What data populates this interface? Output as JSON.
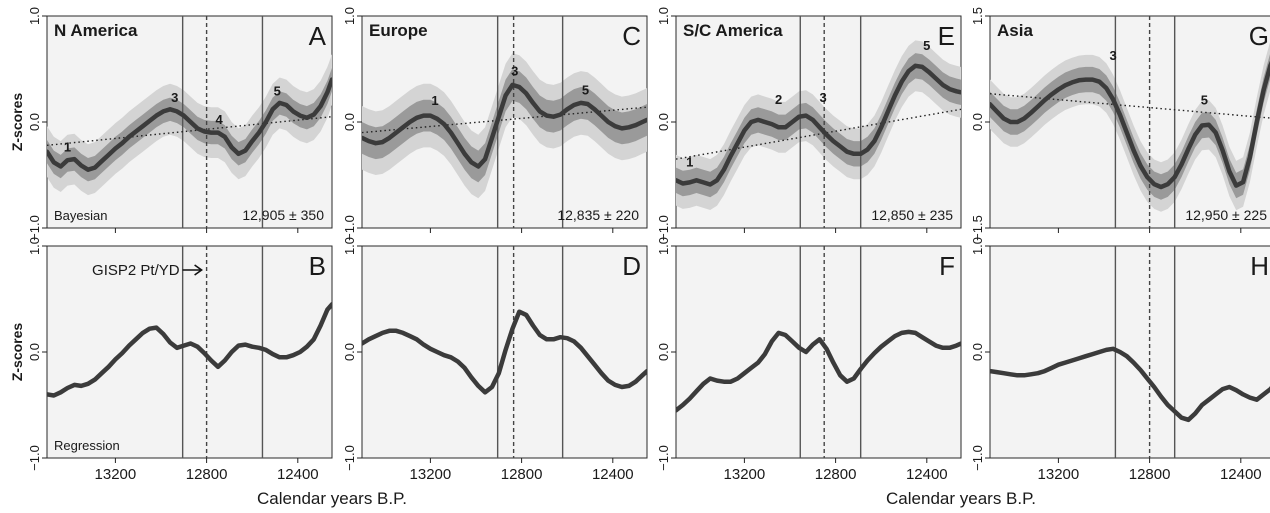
{
  "chart_data": {
    "type": "line",
    "xlabel": "Calendar years B.P.",
    "ylabel": "Z-scores",
    "xlim": [
      13500,
      12250
    ],
    "x_ticks": [
      13200,
      12800,
      12400
    ],
    "x_tick_labels": [
      "13200",
      "12800",
      "12400"
    ],
    "gisp_marker": {
      "label": "GISP2 Pt/YD",
      "x": 12800
    },
    "panels": [
      {
        "region": "N America",
        "letter": "A",
        "method": "Bayesian",
        "age_label": "12,905 ± 350",
        "ylim": [
          -1.0,
          1.0
        ],
        "y_ticks": [
          1.0,
          0.0,
          -1.0
        ],
        "y_tick_labels": [
          "1.0",
          "0.0",
          "−1.0"
        ],
        "vlines": {
          "solid": [
            12905,
            12555
          ],
          "dashed": [
            12800
          ]
        },
        "x": [
          13500,
          13470,
          13440,
          13410,
          13380,
          13350,
          13320,
          13290,
          13260,
          13230,
          13200,
          13170,
          13140,
          13110,
          13080,
          13050,
          13020,
          12990,
          12960,
          12930,
          12900,
          12870,
          12840,
          12810,
          12780,
          12750,
          12720,
          12690,
          12660,
          12630,
          12600,
          12570,
          12540,
          12510,
          12480,
          12450,
          12420,
          12390,
          12360,
          12330,
          12300,
          12270,
          12250
        ],
        "y": [
          -0.28,
          -0.38,
          -0.42,
          -0.36,
          -0.35,
          -0.41,
          -0.45,
          -0.43,
          -0.37,
          -0.31,
          -0.25,
          -0.2,
          -0.14,
          -0.09,
          -0.04,
          0.01,
          0.06,
          0.1,
          0.12,
          0.1,
          0.06,
          0.0,
          -0.06,
          -0.09,
          -0.1,
          -0.1,
          -0.14,
          -0.24,
          -0.3,
          -0.27,
          -0.18,
          -0.1,
          0.0,
          0.12,
          0.18,
          0.16,
          0.1,
          0.06,
          0.04,
          0.07,
          0.15,
          0.28,
          0.4
        ],
        "band_inner": 0.11,
        "band_outer": 0.24,
        "trend": {
          "x": [
            13500,
            12250
          ],
          "y": [
            -0.22,
            0.05
          ]
        },
        "events": [
          {
            "label": "1",
            "x": 13410,
            "y": -0.28
          },
          {
            "label": "3",
            "x": 12940,
            "y": 0.19
          },
          {
            "label": "4",
            "x": 12745,
            "y": -0.02
          },
          {
            "label": "5",
            "x": 12490,
            "y": 0.25
          }
        ]
      },
      {
        "region": "N America",
        "letter": "B",
        "method": "Regression",
        "age_label": "",
        "ylim": [
          -1.0,
          1.0
        ],
        "y_ticks": [
          1.0,
          0.0,
          -1.0
        ],
        "y_tick_labels": [
          "1.0",
          "0.0",
          "−1.0"
        ],
        "vlines": {
          "solid": [
            12905,
            12555
          ],
          "dashed": [
            12800
          ]
        },
        "x": [
          13500,
          13470,
          13440,
          13410,
          13380,
          13350,
          13320,
          13290,
          13260,
          13230,
          13200,
          13170,
          13140,
          13110,
          13080,
          13050,
          13020,
          12990,
          12960,
          12930,
          12900,
          12870,
          12840,
          12810,
          12780,
          12750,
          12720,
          12690,
          12660,
          12630,
          12600,
          12570,
          12540,
          12510,
          12480,
          12450,
          12420,
          12390,
          12360,
          12330,
          12300,
          12270,
          12250
        ],
        "y": [
          -0.4,
          -0.41,
          -0.38,
          -0.34,
          -0.31,
          -0.32,
          -0.3,
          -0.26,
          -0.2,
          -0.14,
          -0.07,
          -0.01,
          0.06,
          0.12,
          0.18,
          0.22,
          0.23,
          0.17,
          0.09,
          0.04,
          0.06,
          0.08,
          0.05,
          -0.01,
          -0.08,
          -0.14,
          -0.08,
          0.0,
          0.06,
          0.07,
          0.05,
          0.04,
          0.02,
          -0.02,
          -0.05,
          -0.05,
          -0.03,
          0.0,
          0.05,
          0.12,
          0.25,
          0.4,
          0.45
        ],
        "events": []
      },
      {
        "region": "Europe",
        "letter": "C",
        "method": "",
        "age_label": "12,835 ± 220",
        "ylim": [
          -1.0,
          1.0
        ],
        "y_ticks": [
          1.0,
          0.0,
          -1.0
        ],
        "y_tick_labels": [
          "1.0",
          "0.0",
          "−1.0"
        ],
        "vlines": {
          "solid": [
            12905,
            12620
          ],
          "dashed": [
            12835
          ]
        },
        "x": [
          13500,
          13470,
          13440,
          13410,
          13380,
          13350,
          13320,
          13290,
          13260,
          13230,
          13200,
          13170,
          13140,
          13110,
          13080,
          13050,
          13020,
          12990,
          12960,
          12930,
          12900,
          12870,
          12840,
          12810,
          12780,
          12750,
          12720,
          12690,
          12660,
          12630,
          12600,
          12570,
          12540,
          12510,
          12480,
          12450,
          12420,
          12390,
          12360,
          12330,
          12300,
          12270,
          12250
        ],
        "y": [
          -0.15,
          -0.18,
          -0.2,
          -0.19,
          -0.15,
          -0.1,
          -0.05,
          0.0,
          0.04,
          0.06,
          0.06,
          0.03,
          -0.02,
          -0.1,
          -0.2,
          -0.3,
          -0.38,
          -0.42,
          -0.35,
          -0.15,
          0.05,
          0.25,
          0.35,
          0.33,
          0.27,
          0.18,
          0.1,
          0.06,
          0.05,
          0.07,
          0.12,
          0.16,
          0.18,
          0.17,
          0.12,
          0.06,
          0.0,
          -0.04,
          -0.06,
          -0.05,
          -0.03,
          0.0,
          0.02
        ],
        "band_inner": 0.15,
        "band_outer": 0.3,
        "trend": {
          "x": [
            13500,
            12250
          ],
          "y": [
            -0.1,
            0.14
          ]
        },
        "events": [
          {
            "label": "1",
            "x": 13180,
            "y": 0.16
          },
          {
            "label": "3",
            "x": 12830,
            "y": 0.44
          },
          {
            "label": "5",
            "x": 12520,
            "y": 0.26
          }
        ]
      },
      {
        "region": "Europe",
        "letter": "D",
        "method": "",
        "age_label": "",
        "ylim": [
          -1.0,
          1.0
        ],
        "y_ticks": [
          1.0,
          0.0,
          -1.0
        ],
        "y_tick_labels": [
          "1.0",
          "0.0",
          "−1.0"
        ],
        "vlines": {
          "solid": [
            12905,
            12620
          ],
          "dashed": [
            12835
          ]
        },
        "x": [
          13500,
          13470,
          13440,
          13410,
          13380,
          13350,
          13320,
          13290,
          13260,
          13230,
          13200,
          13170,
          13140,
          13110,
          13080,
          13050,
          13020,
          12990,
          12960,
          12930,
          12900,
          12870,
          12840,
          12810,
          12780,
          12750,
          12720,
          12690,
          12660,
          12630,
          12600,
          12570,
          12540,
          12510,
          12480,
          12450,
          12420,
          12390,
          12360,
          12330,
          12300,
          12270,
          12250
        ],
        "y": [
          0.08,
          0.12,
          0.15,
          0.18,
          0.2,
          0.2,
          0.18,
          0.15,
          0.12,
          0.07,
          0.03,
          0.0,
          -0.03,
          -0.05,
          -0.09,
          -0.15,
          -0.24,
          -0.32,
          -0.38,
          -0.33,
          -0.2,
          0.02,
          0.22,
          0.38,
          0.35,
          0.25,
          0.16,
          0.12,
          0.12,
          0.14,
          0.13,
          0.1,
          0.04,
          -0.04,
          -0.12,
          -0.2,
          -0.27,
          -0.31,
          -0.33,
          -0.32,
          -0.28,
          -0.22,
          -0.18
        ],
        "events": []
      },
      {
        "region": "S/C America",
        "letter": "E",
        "method": "",
        "age_label": "12,850 ± 235",
        "ylim": [
          -1.0,
          1.0
        ],
        "y_ticks": [
          1.0,
          0.0,
          -1.0
        ],
        "y_tick_labels": [
          "1.0",
          "0.0",
          "−1.0"
        ],
        "vlines": {
          "solid": [
            12955,
            12690
          ],
          "dashed": [
            12850
          ]
        },
        "x": [
          13500,
          13470,
          13440,
          13410,
          13380,
          13350,
          13320,
          13290,
          13260,
          13230,
          13200,
          13170,
          13140,
          13110,
          13080,
          13050,
          13020,
          12990,
          12960,
          12930,
          12900,
          12870,
          12840,
          12810,
          12780,
          12750,
          12720,
          12690,
          12660,
          12630,
          12600,
          12570,
          12540,
          12510,
          12480,
          12450,
          12420,
          12390,
          12360,
          12330,
          12300,
          12270,
          12250
        ],
        "y": [
          -0.55,
          -0.58,
          -0.57,
          -0.55,
          -0.57,
          -0.59,
          -0.55,
          -0.45,
          -0.32,
          -0.2,
          -0.08,
          0.0,
          0.02,
          0.0,
          -0.02,
          -0.05,
          -0.05,
          0.0,
          0.05,
          0.06,
          0.02,
          -0.05,
          -0.12,
          -0.18,
          -0.23,
          -0.28,
          -0.3,
          -0.3,
          -0.26,
          -0.18,
          -0.05,
          0.1,
          0.25,
          0.38,
          0.48,
          0.53,
          0.52,
          0.47,
          0.41,
          0.35,
          0.31,
          0.29,
          0.28
        ],
        "band_inner": 0.12,
        "band_outer": 0.24,
        "trend": {
          "x": [
            13500,
            12250
          ],
          "y": [
            -0.35,
            0.12
          ]
        },
        "events": [
          {
            "label": "1",
            "x": 13440,
            "y": -0.42
          },
          {
            "label": "2",
            "x": 13050,
            "y": 0.17
          },
          {
            "label": "3",
            "x": 12855,
            "y": 0.19
          },
          {
            "label": "5",
            "x": 12400,
            "y": 0.68
          }
        ]
      },
      {
        "region": "S/C America",
        "letter": "F",
        "method": "",
        "age_label": "",
        "ylim": [
          -1.0,
          1.0
        ],
        "y_ticks": [
          1.0,
          0.0,
          -1.0
        ],
        "y_tick_labels": [
          "1.0",
          "0.0",
          "−1.0"
        ],
        "vlines": {
          "solid": [
            12955,
            12690
          ],
          "dashed": [
            12850
          ]
        },
        "x": [
          13500,
          13470,
          13440,
          13410,
          13380,
          13350,
          13320,
          13290,
          13260,
          13230,
          13200,
          13170,
          13140,
          13110,
          13080,
          13050,
          13020,
          12990,
          12960,
          12930,
          12900,
          12870,
          12840,
          12810,
          12780,
          12750,
          12720,
          12690,
          12660,
          12630,
          12600,
          12570,
          12540,
          12510,
          12480,
          12450,
          12420,
          12390,
          12360,
          12330,
          12300,
          12270,
          12250
        ],
        "y": [
          -0.55,
          -0.5,
          -0.44,
          -0.37,
          -0.3,
          -0.25,
          -0.27,
          -0.28,
          -0.28,
          -0.25,
          -0.2,
          -0.15,
          -0.1,
          -0.02,
          0.1,
          0.18,
          0.16,
          0.1,
          0.04,
          0.0,
          0.07,
          0.12,
          0.03,
          -0.1,
          -0.22,
          -0.28,
          -0.25,
          -0.16,
          -0.08,
          -0.01,
          0.05,
          0.1,
          0.15,
          0.18,
          0.19,
          0.18,
          0.14,
          0.1,
          0.06,
          0.04,
          0.04,
          0.06,
          0.08
        ],
        "events": []
      },
      {
        "region": "Asia",
        "letter": "G",
        "method": "",
        "age_label": "12,950 ± 225",
        "ylim": [
          -1.5,
          1.5
        ],
        "y_ticks": [
          1.5,
          0.0,
          -1.5
        ],
        "y_tick_labels": [
          "1.5",
          "0.0",
          "−1.5"
        ],
        "vlines": {
          "solid": [
            12950,
            12690
          ],
          "dashed": [
            12800
          ]
        },
        "x": [
          13500,
          13470,
          13440,
          13410,
          13380,
          13350,
          13320,
          13290,
          13260,
          13230,
          13200,
          13170,
          13140,
          13110,
          13080,
          13050,
          13020,
          12990,
          12960,
          12930,
          12900,
          12870,
          12840,
          12810,
          12780,
          12750,
          12720,
          12690,
          12660,
          12630,
          12600,
          12570,
          12540,
          12510,
          12480,
          12450,
          12420,
          12390,
          12360,
          12330,
          12300,
          12270,
          12250
        ],
        "y": [
          0.25,
          0.15,
          0.05,
          0.0,
          0.0,
          0.05,
          0.13,
          0.22,
          0.31,
          0.39,
          0.46,
          0.52,
          0.56,
          0.59,
          0.6,
          0.6,
          0.57,
          0.48,
          0.32,
          0.1,
          -0.15,
          -0.4,
          -0.62,
          -0.78,
          -0.88,
          -0.92,
          -0.88,
          -0.78,
          -0.6,
          -0.38,
          -0.18,
          -0.05,
          -0.04,
          -0.15,
          -0.4,
          -0.7,
          -0.9,
          -0.85,
          -0.5,
          0.0,
          0.45,
          0.8,
          0.95
        ],
        "band_inner": 0.18,
        "band_outer": 0.35,
        "trend": {
          "x": [
            13500,
            12250
          ],
          "y": [
            0.4,
            0.05
          ]
        },
        "events": [
          {
            "label": "3",
            "x": 12960,
            "y": 0.88
          },
          {
            "label": "5",
            "x": 12560,
            "y": 0.25
          }
        ]
      },
      {
        "region": "Asia",
        "letter": "H",
        "method": "",
        "age_label": "",
        "ylim": [
          -1.0,
          1.0
        ],
        "y_ticks": [
          1.0,
          0.0,
          -1.0
        ],
        "y_tick_labels": [
          "1.0",
          "0.0",
          "−1.0"
        ],
        "vlines": {
          "solid": [
            12950,
            12690
          ],
          "dashed": [
            12800
          ]
        },
        "x": [
          13500,
          13470,
          13440,
          13410,
          13380,
          13350,
          13320,
          13290,
          13260,
          13230,
          13200,
          13170,
          13140,
          13110,
          13080,
          13050,
          13020,
          12990,
          12960,
          12930,
          12900,
          12870,
          12840,
          12810,
          12780,
          12750,
          12720,
          12690,
          12660,
          12630,
          12600,
          12570,
          12540,
          12510,
          12480,
          12450,
          12420,
          12390,
          12360,
          12330,
          12300,
          12270,
          12250
        ],
        "y": [
          -0.18,
          -0.19,
          -0.2,
          -0.21,
          -0.22,
          -0.22,
          -0.21,
          -0.2,
          -0.18,
          -0.15,
          -0.12,
          -0.1,
          -0.08,
          -0.06,
          -0.04,
          -0.02,
          0.0,
          0.02,
          0.03,
          0.0,
          -0.04,
          -0.1,
          -0.17,
          -0.25,
          -0.33,
          -0.42,
          -0.5,
          -0.56,
          -0.62,
          -0.64,
          -0.58,
          -0.5,
          -0.45,
          -0.4,
          -0.35,
          -0.33,
          -0.36,
          -0.4,
          -0.43,
          -0.45,
          -0.4,
          -0.35,
          -0.3
        ],
        "events": []
      }
    ]
  }
}
